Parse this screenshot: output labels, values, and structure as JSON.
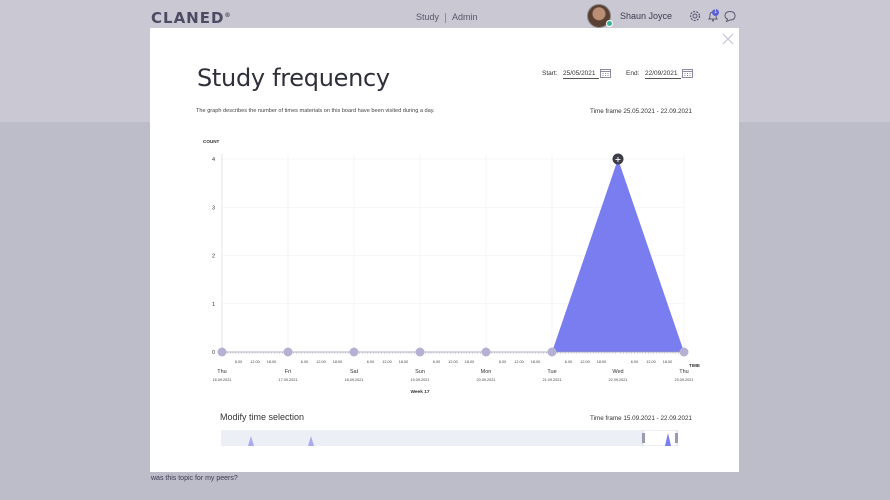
{
  "app": {
    "logo": "CLANED",
    "logo_mark": "®",
    "nav": [
      "Study",
      "Admin"
    ],
    "user_name": "Shaun Joyce",
    "notification_count": "1",
    "background_text": "was this topic for my peers?"
  },
  "modal": {
    "title": "Study frequency",
    "start_label": "Start:",
    "start_value": "25/05/2021",
    "end_label": "End:",
    "end_value": "22/09/2021",
    "description": "The graph describes the number of times materials on this board have been visited during a day.",
    "timeframe": "Time frame 25.05.2021 - 22.09.2021",
    "modify_title": "Modify time selection",
    "modify_timeframe": "Time frame 15.09.2021 - 22.09.2021"
  },
  "colors": {
    "accent": "#7a7df0",
    "marker": "#b4b1d2",
    "overlay": "#c9c8d3"
  },
  "chart_data": {
    "type": "area",
    "ylabel": "COUNT",
    "xlabel": "TIME",
    "ylim": [
      0,
      4
    ],
    "yticks": [
      0,
      1,
      2,
      3,
      4
    ],
    "days": [
      {
        "day": "Thu",
        "date": "16.09.2021"
      },
      {
        "day": "Fri",
        "date": "17.09.2021"
      },
      {
        "day": "Sat",
        "date": "18.09.2021"
      },
      {
        "day": "Sun",
        "date": "19.09.2021"
      },
      {
        "day": "Mon",
        "date": "20.09.2021"
      },
      {
        "day": "Tue",
        "date": "21.09.2021"
      },
      {
        "day": "Wed",
        "date": "22.09.2021"
      },
      {
        "day": "Thu",
        "date": "23.09.2021"
      }
    ],
    "hour_ticks": [
      "6.00",
      "12.00",
      "18.00"
    ],
    "week_label": "Week 17",
    "values": [
      0,
      0,
      0,
      0,
      0,
      0,
      4,
      0
    ]
  }
}
